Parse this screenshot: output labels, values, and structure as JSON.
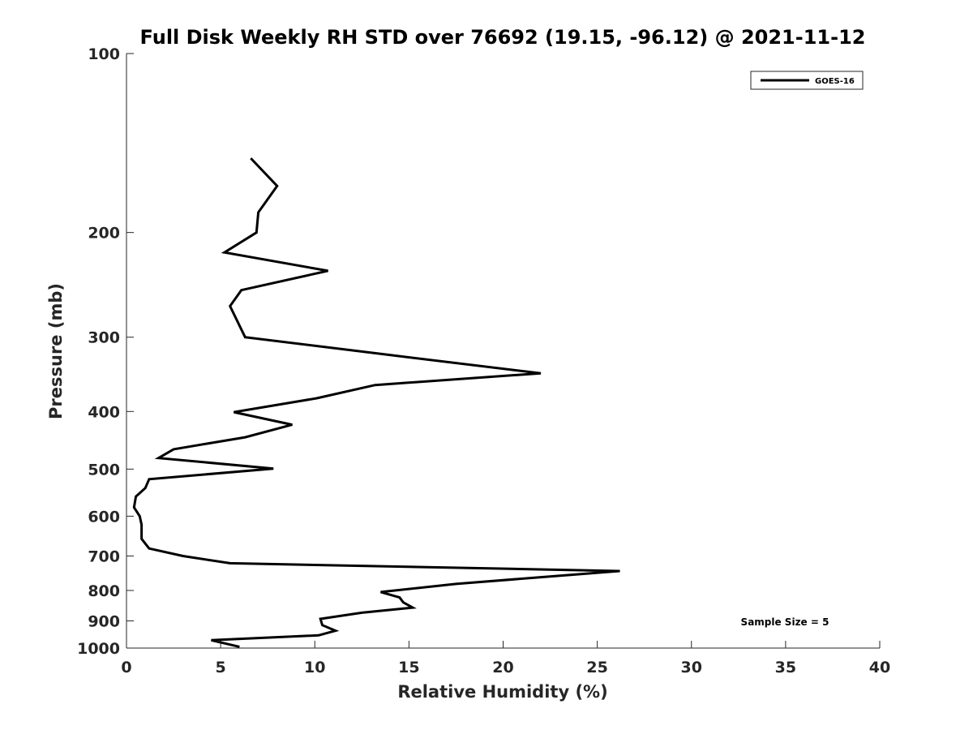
{
  "chart_data": {
    "type": "line",
    "title": "Full Disk Weekly RH STD over 76692 (19.15, -96.12) @ 2021-11-12",
    "xlabel": "Relative Humidity (%)",
    "ylabel": "Pressure (mb)",
    "xlim": [
      0,
      40
    ],
    "ylim": [
      100,
      1000
    ],
    "y_scale": "log",
    "y_reversed": true,
    "x_ticks": [
      0,
      5,
      10,
      15,
      20,
      25,
      30,
      35,
      40
    ],
    "y_ticks": [
      100,
      200,
      300,
      400,
      500,
      600,
      700,
      800,
      900,
      1000
    ],
    "grid": false,
    "legend_position": "top-right",
    "series": [
      {
        "name": "GOES-16",
        "color": "#000000",
        "points": [
          {
            "x": 6.6,
            "p": 150
          },
          {
            "x": 8.0,
            "p": 167
          },
          {
            "x": 7.0,
            "p": 185
          },
          {
            "x": 6.9,
            "p": 200
          },
          {
            "x": 5.2,
            "p": 216
          },
          {
            "x": 10.7,
            "p": 232
          },
          {
            "x": 6.1,
            "p": 250
          },
          {
            "x": 5.5,
            "p": 266
          },
          {
            "x": 6.3,
            "p": 300
          },
          {
            "x": 13.5,
            "p": 320
          },
          {
            "x": 22.0,
            "p": 345
          },
          {
            "x": 13.2,
            "p": 361
          },
          {
            "x": 10.1,
            "p": 380
          },
          {
            "x": 5.7,
            "p": 401
          },
          {
            "x": 8.8,
            "p": 421
          },
          {
            "x": 6.3,
            "p": 442
          },
          {
            "x": 2.5,
            "p": 463
          },
          {
            "x": 1.7,
            "p": 479
          },
          {
            "x": 7.8,
            "p": 499
          },
          {
            "x": 1.2,
            "p": 520
          },
          {
            "x": 1.0,
            "p": 538
          },
          {
            "x": 0.5,
            "p": 556
          },
          {
            "x": 0.4,
            "p": 580
          },
          {
            "x": 0.7,
            "p": 600
          },
          {
            "x": 0.8,
            "p": 620
          },
          {
            "x": 0.8,
            "p": 655
          },
          {
            "x": 1.2,
            "p": 680
          },
          {
            "x": 3.0,
            "p": 700
          },
          {
            "x": 5.5,
            "p": 720
          },
          {
            "x": 26.2,
            "p": 742
          },
          {
            "x": 22.0,
            "p": 760
          },
          {
            "x": 17.5,
            "p": 780
          },
          {
            "x": 13.5,
            "p": 805
          },
          {
            "x": 14.5,
            "p": 822
          },
          {
            "x": 14.7,
            "p": 838
          },
          {
            "x": 15.2,
            "p": 855
          },
          {
            "x": 12.5,
            "p": 872
          },
          {
            "x": 10.3,
            "p": 893
          },
          {
            "x": 10.4,
            "p": 915
          },
          {
            "x": 11.1,
            "p": 935
          },
          {
            "x": 10.2,
            "p": 952
          },
          {
            "x": 4.5,
            "p": 970
          },
          {
            "x": 6.0,
            "p": 995
          }
        ]
      }
    ],
    "annotations": [
      {
        "text": "Sample Size = 5",
        "position": "bottom-right"
      }
    ]
  }
}
